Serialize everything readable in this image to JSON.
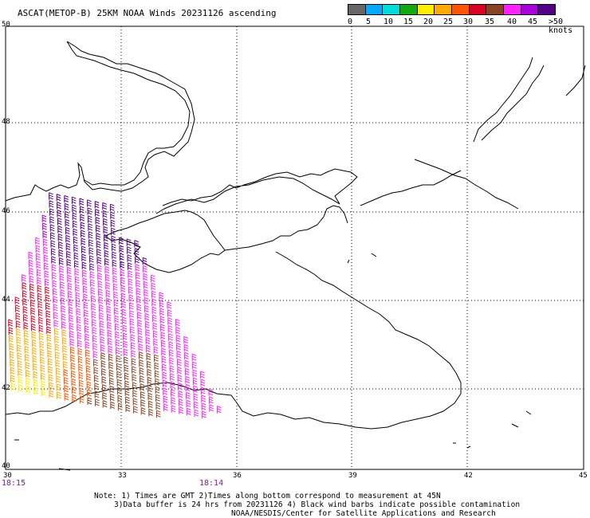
{
  "title": "ASCAT(METOP-B) 25KM NOAA Winds 20231126 ascending",
  "legend": {
    "colors": [
      "#666666",
      "#00aaff",
      "#00dddd",
      "#11aa11",
      "#ffee00",
      "#ffaa00",
      "#ff5500",
      "#dd0022",
      "#884422",
      "#ff22ff",
      "#aa00dd",
      "#550088"
    ],
    "labels": [
      "0",
      "5",
      "10",
      "15",
      "20",
      "25",
      "30",
      "35",
      "40",
      "45",
      ">50 knots"
    ]
  },
  "axes": {
    "lon_labels": [
      "30",
      "33",
      "36",
      "39",
      "42",
      "45"
    ],
    "lat_labels": [
      "50",
      "48",
      "46",
      "44",
      "42",
      "40"
    ],
    "lon_range": [
      30,
      45
    ],
    "lat_range": [
      40,
      50
    ]
  },
  "times": {
    "left": "18:15",
    "mid": "18:14"
  },
  "note": {
    "line1": "Note: 1) Times are GMT 2)Times along bottom correspond to measurement at 45N",
    "line2": "3)Data buffer is 24 hrs from 20231126 4) Black wind barbs indicate possible contamination",
    "line3": "NOAA/NESDIS/Center for Satellite Applications and Research"
  }
}
